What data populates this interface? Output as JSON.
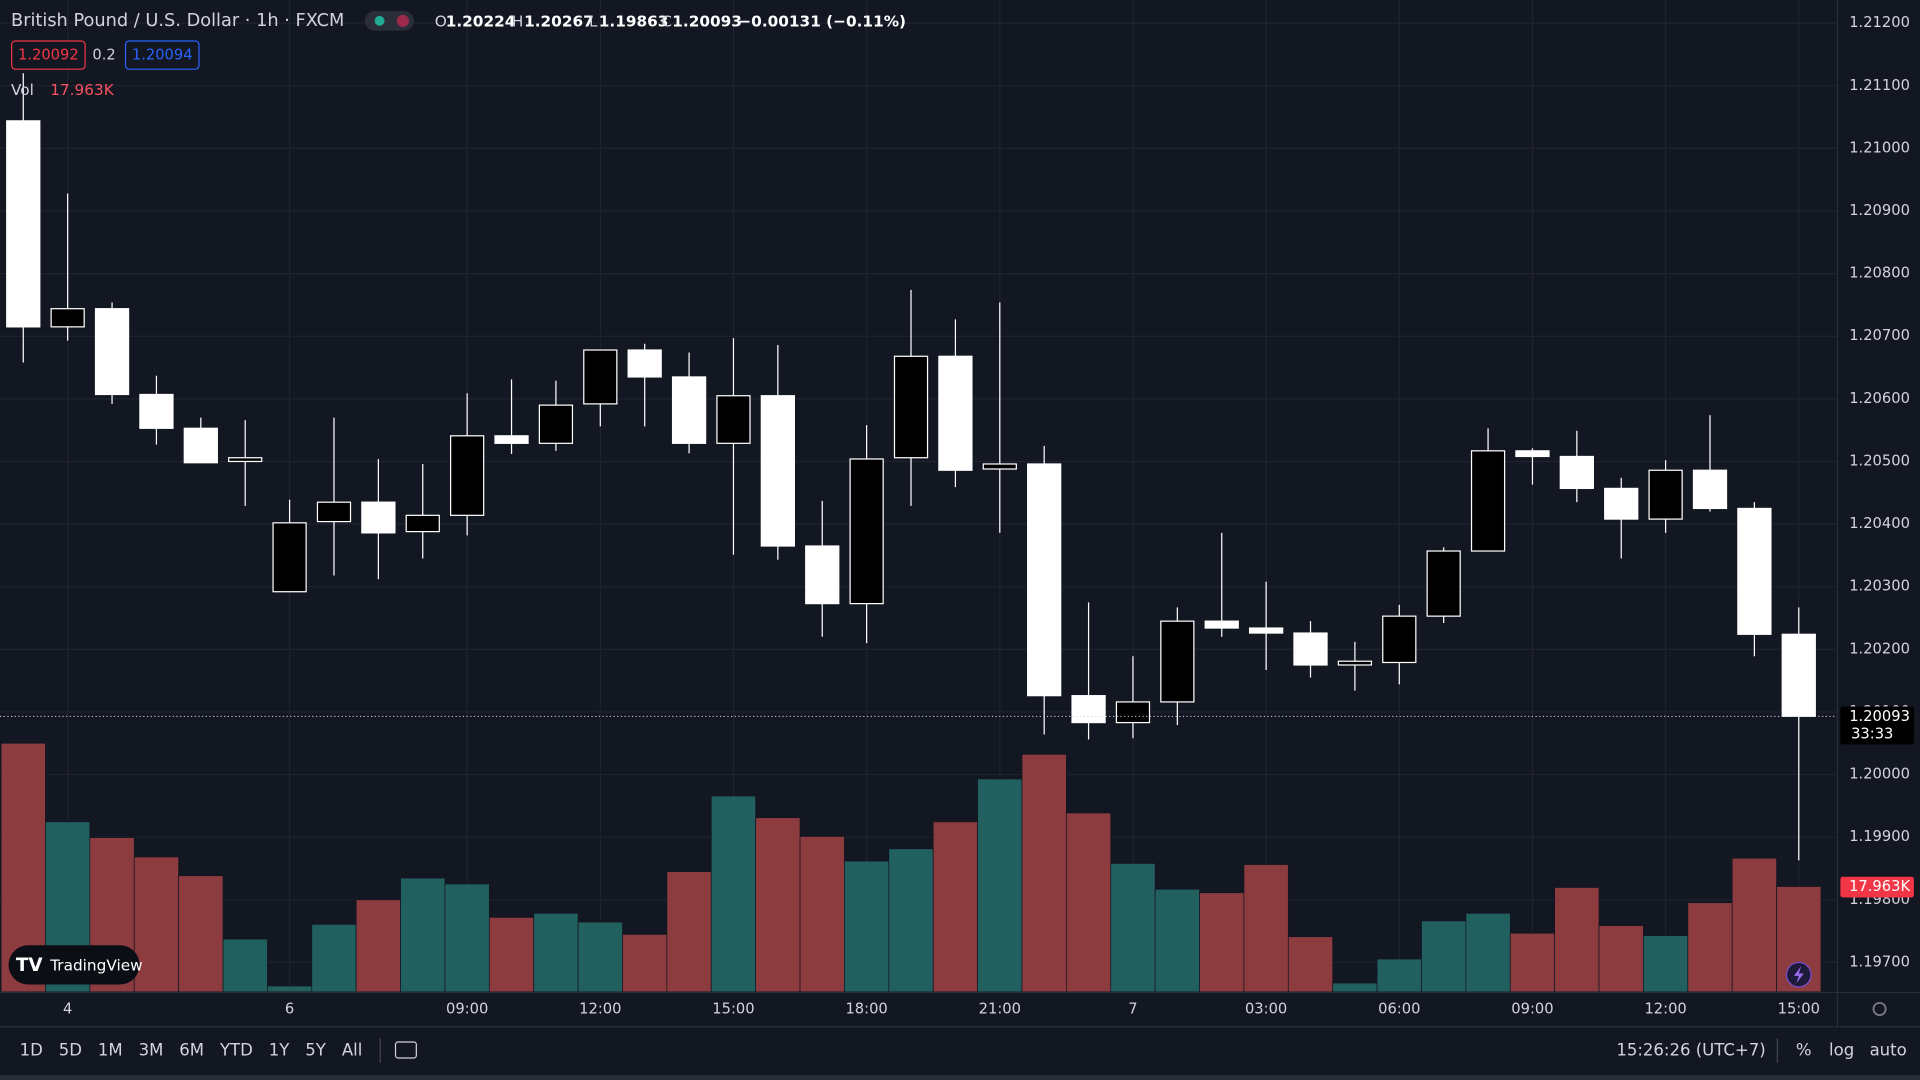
{
  "header": {
    "symbol": "British Pound / U.S. Dollar · 1h · FXCM",
    "o_label": "O",
    "h_label": "H",
    "l_label": "L",
    "c_label": "C",
    "change": "−0.00131 (−0.11%)",
    "bid": "1.20092",
    "spread": "0.2",
    "ask": "1.20094",
    "vol_label": "Vol",
    "countdown": "33:33"
  },
  "logo": "TradingView",
  "toolbar": {
    "ranges": [
      "1D",
      "5D",
      "1M",
      "3M",
      "6M",
      "YTD",
      "1Y",
      "5Y",
      "All"
    ],
    "time": "15:26:26 (UTC+7)",
    "percent": "%",
    "log": "log",
    "auto": "auto"
  },
  "chart_data": {
    "type": "candlestick",
    "categories": [
      null,
      "4",
      null,
      null,
      null,
      null,
      "6",
      null,
      null,
      null,
      "09:00",
      null,
      null,
      "12:00",
      null,
      null,
      "15:00",
      null,
      null,
      "18:00",
      null,
      null,
      "21:00",
      null,
      null,
      "7",
      null,
      null,
      "03:00",
      null,
      null,
      "06:00",
      null,
      null,
      "09:00",
      null,
      null,
      "12:00",
      null,
      null,
      "15:00"
    ],
    "open": [
      1.21044,
      1.20715,
      1.20744,
      1.20607,
      1.20553,
      1.205,
      1.20292,
      1.20404,
      1.20435,
      1.20388,
      1.20414,
      1.20541,
      1.20529,
      1.20592,
      1.20678,
      1.20635,
      1.20529,
      1.20605,
      1.20365,
      1.20273,
      1.20506,
      1.20668,
      1.20488,
      1.20496,
      1.20126,
      1.20083,
      1.20116,
      1.20245,
      1.20234,
      1.20226,
      1.20175,
      1.20179,
      1.20253,
      1.20357,
      1.20517,
      1.20508,
      1.20457,
      1.20408,
      1.20486,
      1.20425,
      1.20224
    ],
    "high": [
      1.2112,
      1.20928,
      1.20754,
      1.20637,
      1.2057,
      1.20566,
      1.20439,
      1.2057,
      1.20504,
      1.20496,
      1.20609,
      1.20631,
      1.20629,
      1.20678,
      1.20688,
      1.20674,
      1.20697,
      1.20686,
      1.20437,
      1.20558,
      1.20774,
      1.20727,
      1.20754,
      1.20525,
      1.20275,
      1.20189,
      1.20267,
      1.20386,
      1.20308,
      1.20245,
      1.20212,
      1.20271,
      1.20363,
      1.20553,
      1.20521,
      1.20549,
      1.20474,
      1.20502,
      1.20574,
      1.20435,
      1.20267
    ],
    "low": [
      1.20658,
      1.20693,
      1.20592,
      1.20527,
      1.20498,
      1.20429,
      1.20292,
      1.20318,
      1.20312,
      1.20345,
      1.20382,
      1.20512,
      1.20517,
      1.20556,
      1.20556,
      1.20513,
      1.20351,
      1.20343,
      1.2022,
      1.2021,
      1.20429,
      1.20459,
      1.20386,
      1.20064,
      1.20056,
      1.20058,
      1.20079,
      1.2022,
      1.20167,
      1.20155,
      1.20134,
      1.20144,
      1.20242,
      1.20357,
      1.20463,
      1.20435,
      1.20345,
      1.20386,
      1.2042,
      1.20189,
      1.19863
    ],
    "close": [
      1.20715,
      1.20744,
      1.20607,
      1.20553,
      1.20498,
      1.20506,
      1.20402,
      1.20435,
      1.20386,
      1.20414,
      1.20541,
      1.20529,
      1.2059,
      1.20678,
      1.20635,
      1.20529,
      1.20605,
      1.20365,
      1.20273,
      1.20504,
      1.20668,
      1.20486,
      1.20496,
      1.20126,
      1.20083,
      1.20116,
      1.20245,
      1.20234,
      1.20226,
      1.20175,
      1.20181,
      1.20253,
      1.20357,
      1.20517,
      1.20508,
      1.20457,
      1.20408,
      1.20486,
      1.20425,
      1.20224,
      1.20093
    ],
    "volume": [
      42400,
      29000,
      26300,
      23000,
      19800,
      9000,
      1000,
      11500,
      15700,
      19400,
      18400,
      12700,
      13400,
      11900,
      9800,
      20500,
      33400,
      29700,
      26500,
      22300,
      24400,
      29000,
      36300,
      40500,
      30500,
      21900,
      17500,
      16900,
      21700,
      9400,
      1500,
      5600,
      12100,
      13400,
      10000,
      17800,
      11300,
      9600,
      15200,
      22800,
      17963
    ],
    "volume_labels": [
      null,
      null,
      null,
      null,
      null,
      null,
      null,
      null,
      null,
      null,
      null,
      null,
      null,
      null,
      null,
      null,
      null,
      null,
      null,
      null,
      null,
      null,
      null,
      null,
      null,
      null,
      null,
      null,
      null,
      null,
      null,
      null,
      null,
      null,
      null,
      null,
      null,
      null,
      null,
      null,
      "17.963K"
    ],
    "ylim": [
      1.19653,
      1.21237
    ],
    "yticks": [
      {
        "value": 1.212,
        "label": "1.21200"
      },
      {
        "value": 1.211,
        "label": "1.21100"
      },
      {
        "value": 1.21,
        "label": "1.21000"
      },
      {
        "value": 1.209,
        "label": "1.20900"
      },
      {
        "value": 1.208,
        "label": "1.20800"
      },
      {
        "value": 1.207,
        "label": "1.20700"
      },
      {
        "value": 1.206,
        "label": "1.20600"
      },
      {
        "value": 1.205,
        "label": "1.20500"
      },
      {
        "value": 1.204,
        "label": "1.20400"
      },
      {
        "value": 1.203,
        "label": "1.20300"
      },
      {
        "value": 1.202,
        "label": "1.20200"
      },
      {
        "value": 1.201,
        "label": "1.20100"
      },
      {
        "value": 1.2,
        "label": "1.20000"
      },
      {
        "value": 1.199,
        "label": "1.19900"
      },
      {
        "value": 1.198,
        "label": "1.19800"
      },
      {
        "value": 1.197,
        "label": "1.19700"
      }
    ],
    "volume_lim": [
      0,
      90000
    ],
    "grid": true,
    "up_color": "#000000",
    "down_color": "#ffffff",
    "wick_color": "#ffffff",
    "volume_up_color": "#22605f",
    "volume_down_color": "#8c3b3f"
  }
}
